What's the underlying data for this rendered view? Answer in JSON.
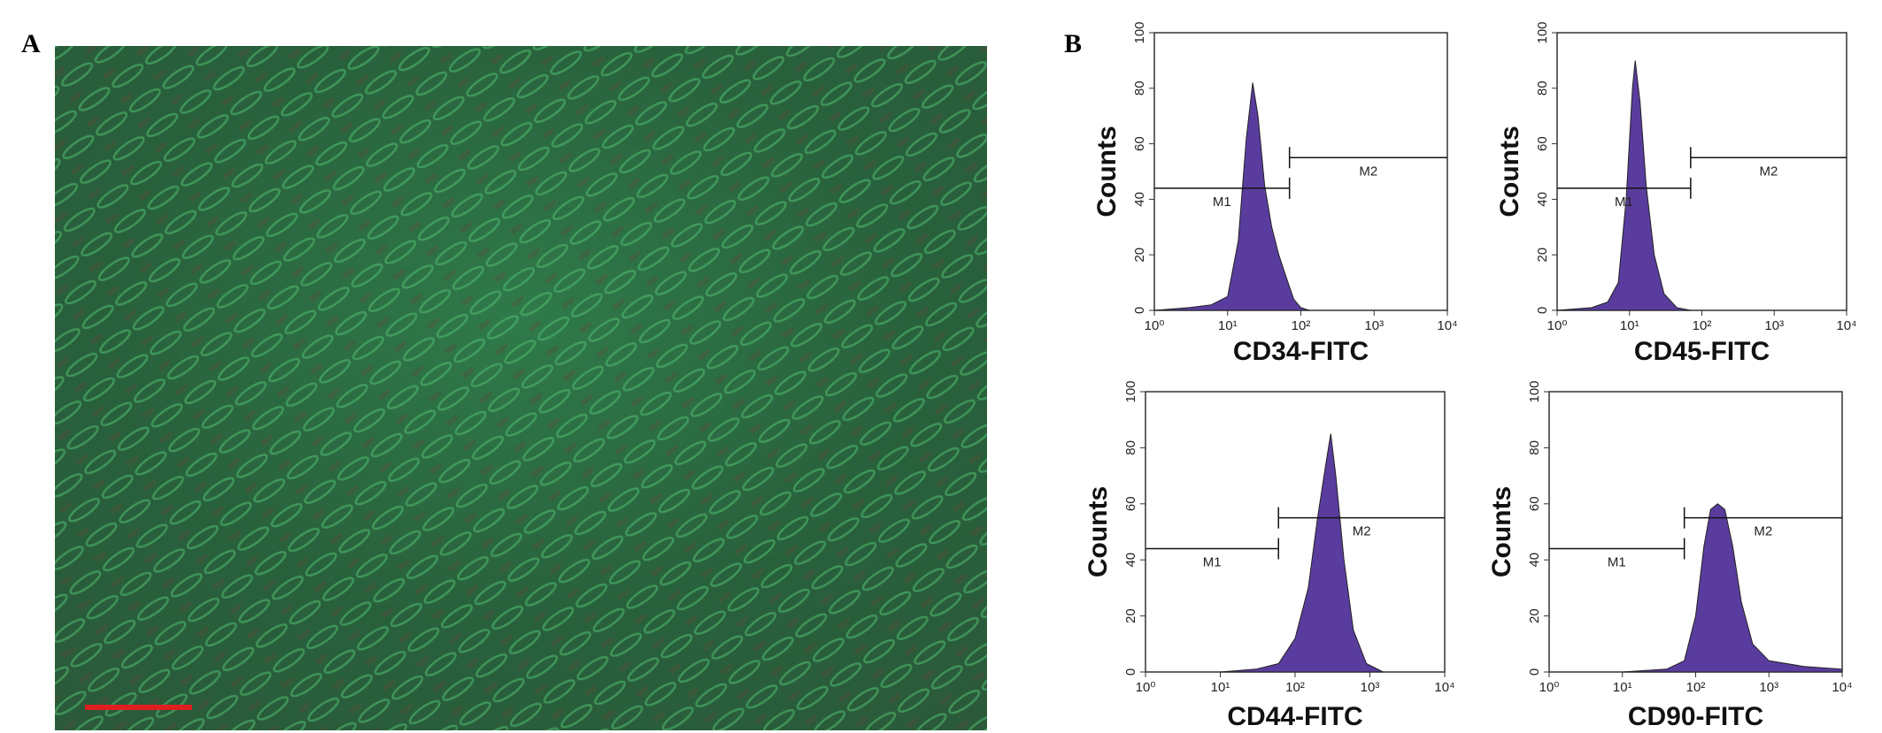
{
  "panel_labels": [
    "A",
    "B"
  ],
  "chart_data": [
    {
      "type": "area",
      "x_label": "CD34-FITC",
      "y_label": "Counts",
      "color": "#5a3c9e",
      "xscale": "log",
      "x": [
        1,
        3,
        6,
        10,
        14,
        18,
        22,
        26,
        32,
        40,
        50,
        63,
        80,
        100,
        130
      ],
      "values": [
        0,
        1,
        2,
        5,
        25,
        62,
        82,
        70,
        45,
        30,
        20,
        12,
        4,
        1,
        0
      ],
      "xlim": [
        1,
        10000
      ],
      "ylim": [
        0,
        100
      ],
      "xticks": [
        {
          "value": 1,
          "label": "10⁰"
        },
        {
          "value": 10,
          "label": "10¹"
        },
        {
          "value": 100,
          "label": "10²"
        },
        {
          "value": 1000,
          "label": "10³"
        },
        {
          "value": 10000,
          "label": "10⁴"
        }
      ],
      "yticks": [
        0,
        20,
        40,
        60,
        80,
        100
      ],
      "markers": [
        {
          "label": "M1",
          "y": 44,
          "x": [
            1,
            70
          ]
        },
        {
          "label": "M2",
          "y": 55,
          "x": [
            70,
            10000
          ]
        }
      ]
    },
    {
      "type": "area",
      "x_label": "CD45-FITC",
      "y_label": "Counts",
      "color": "#5a3c9e",
      "xscale": "log",
      "x": [
        1,
        3,
        5,
        7,
        9,
        11,
        12,
        14,
        17,
        22,
        30,
        45,
        70
      ],
      "values": [
        0,
        1,
        3,
        10,
        40,
        80,
        90,
        75,
        45,
        20,
        6,
        1,
        0
      ],
      "xlim": [
        1,
        10000
      ],
      "ylim": [
        0,
        100
      ],
      "xticks": [
        {
          "value": 1,
          "label": "10⁰"
        },
        {
          "value": 10,
          "label": "10¹"
        },
        {
          "value": 100,
          "label": "10²"
        },
        {
          "value": 1000,
          "label": "10³"
        },
        {
          "value": 10000,
          "label": "10⁴"
        }
      ],
      "yticks": [
        0,
        20,
        40,
        60,
        80,
        100
      ],
      "markers": [
        {
          "label": "M1",
          "y": 44,
          "x": [
            1,
            70
          ]
        },
        {
          "label": "M2",
          "y": 55,
          "x": [
            70,
            10000
          ]
        }
      ]
    },
    {
      "type": "area",
      "x_label": "CD44-FITC",
      "y_label": "Counts",
      "color": "#5a3c9e",
      "xscale": "log",
      "x": [
        10,
        30,
        60,
        100,
        150,
        200,
        260,
        300,
        350,
        450,
        600,
        900,
        1500
      ],
      "values": [
        0,
        1,
        3,
        12,
        30,
        55,
        75,
        85,
        70,
        40,
        15,
        3,
        0
      ],
      "xlim": [
        1,
        10000
      ],
      "ylim": [
        0,
        100
      ],
      "xticks": [
        {
          "value": 1,
          "label": "10⁰"
        },
        {
          "value": 10,
          "label": "10¹"
        },
        {
          "value": 100,
          "label": "10²"
        },
        {
          "value": 1000,
          "label": "10³"
        },
        {
          "value": 10000,
          "label": "10⁴"
        }
      ],
      "yticks": [
        0,
        20,
        40,
        60,
        80,
        100
      ],
      "markers": [
        {
          "label": "M1",
          "y": 44,
          "x": [
            1,
            60
          ]
        },
        {
          "label": "M2",
          "y": 55,
          "x": [
            60,
            10000
          ]
        }
      ]
    },
    {
      "type": "area",
      "x_label": "CD90-FITC",
      "y_label": "Counts",
      "color": "#5a3c9e",
      "xscale": "log",
      "x": [
        10,
        40,
        70,
        100,
        130,
        160,
        200,
        250,
        320,
        420,
        600,
        1000,
        3000,
        10000
      ],
      "values": [
        0,
        1,
        4,
        20,
        45,
        58,
        60,
        58,
        45,
        25,
        10,
        4,
        2,
        1
      ],
      "xlim": [
        1,
        10000
      ],
      "ylim": [
        0,
        100
      ],
      "xticks": [
        {
          "value": 1,
          "label": "10⁰"
        },
        {
          "value": 10,
          "label": "10¹"
        },
        {
          "value": 100,
          "label": "10²"
        },
        {
          "value": 1000,
          "label": "10³"
        },
        {
          "value": 10000,
          "label": "10⁴"
        }
      ],
      "yticks": [
        0,
        20,
        40,
        60,
        80,
        100
      ],
      "markers": [
        {
          "label": "M1",
          "y": 44,
          "x": [
            1,
            70
          ]
        },
        {
          "label": "M2",
          "y": 55,
          "x": [
            70,
            10000
          ]
        }
      ]
    }
  ]
}
